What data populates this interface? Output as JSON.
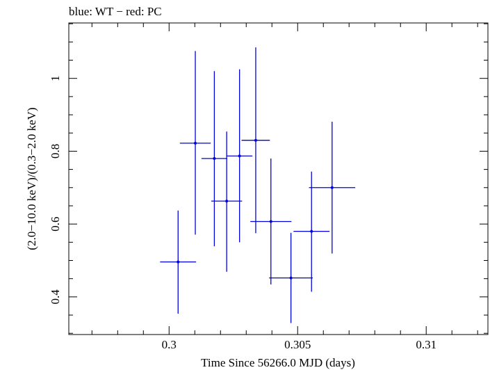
{
  "header": {
    "title": "blue: WT − red: PC"
  },
  "chart_data": {
    "type": "scatter",
    "title": "blue: WT − red: PC",
    "xlabel": "Time Since 56266.0 MJD (days)",
    "ylabel": "(2.0−10.0 keV)/(0.3−2.0 keV)",
    "xlim": [
      0.2961,
      0.3124
    ],
    "ylim": [
      0.2966,
      1.1522
    ],
    "x_ticks": [
      {
        "value": 0.3,
        "label": "0.3"
      },
      {
        "value": 0.305,
        "label": "0.305"
      },
      {
        "value": 0.31,
        "label": "0.31"
      }
    ],
    "y_ticks": [
      {
        "value": 0.4,
        "label": "0.4"
      },
      {
        "value": 0.6,
        "label": "0.6"
      },
      {
        "value": 0.8,
        "label": "0.8"
      },
      {
        "value": 1.0,
        "label": "1"
      }
    ],
    "grid": false,
    "colors": {
      "series": "#0000dd",
      "axes": "#000000"
    },
    "series": [
      {
        "points": [
          {
            "x": 0.30035,
            "xerr": 0.0007,
            "y": 0.496,
            "ylo": 0.354,
            "yhi": 0.637
          },
          {
            "x": 0.30102,
            "xerr": 0.0006,
            "y": 0.822,
            "ylo": 0.571,
            "yhi": 1.075
          },
          {
            "x": 0.30176,
            "xerr": 0.0005,
            "y": 0.78,
            "ylo": 0.539,
            "yhi": 1.02
          },
          {
            "x": 0.30224,
            "xerr": 0.0006,
            "y": 0.663,
            "ylo": 0.469,
            "yhi": 0.854
          },
          {
            "x": 0.30274,
            "xerr": 0.0005,
            "y": 0.787,
            "ylo": 0.55,
            "yhi": 1.025
          },
          {
            "x": 0.30337,
            "xerr": 0.00055,
            "y": 0.83,
            "ylo": 0.575,
            "yhi": 1.085
          },
          {
            "x": 0.30396,
            "xerr": 0.0008,
            "y": 0.607,
            "ylo": 0.434,
            "yhi": 0.78
          },
          {
            "x": 0.30474,
            "xerr": 0.00085,
            "y": 0.452,
            "ylo": 0.328,
            "yhi": 0.576
          },
          {
            "x": 0.30554,
            "xerr": 0.0007,
            "y": 0.58,
            "ylo": 0.414,
            "yhi": 0.744
          },
          {
            "x": 0.30634,
            "xerr": 0.0009,
            "y": 0.7,
            "ylo": 0.519,
            "yhi": 0.881
          }
        ]
      }
    ]
  }
}
